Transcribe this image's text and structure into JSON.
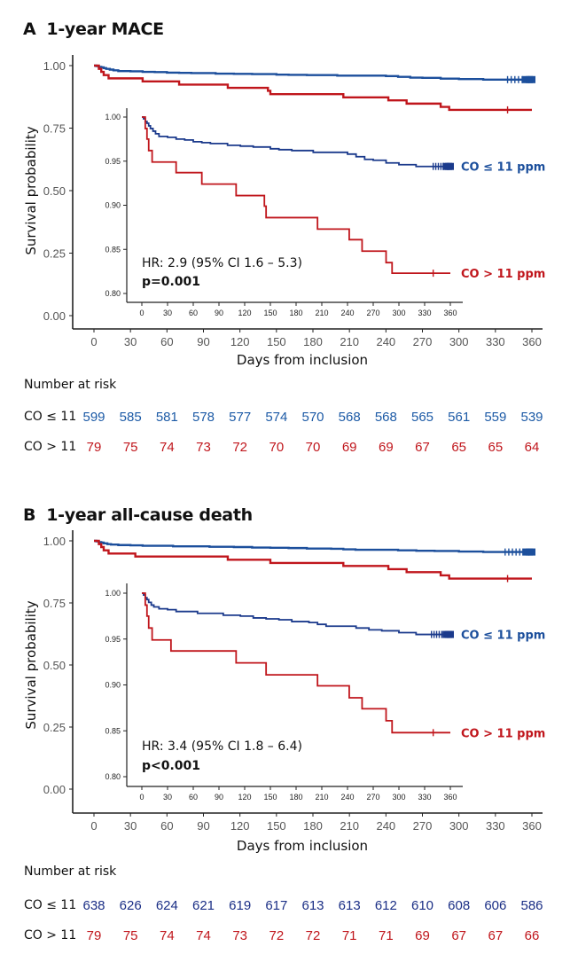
{
  "colors": {
    "low": "#1c4f9c",
    "low_inset": "#1b3a8c",
    "high": "#c0161c",
    "axis": "#222222",
    "tick_text": "#555555"
  },
  "chart_data": [
    {
      "id": "A",
      "type": "line",
      "panel_letter": "A",
      "title": "1-year MACE",
      "xlabel": "Days from inclusion",
      "ylabel": "Survival probability",
      "xlim": [
        0,
        360
      ],
      "ylim": [
        0,
        1
      ],
      "x_ticks": [
        0,
        30,
        60,
        90,
        120,
        150,
        180,
        210,
        240,
        270,
        300,
        330,
        360
      ],
      "y_ticks": [
        "0.00",
        "0.25",
        "0.50",
        "0.75",
        "1.00"
      ],
      "series": [
        {
          "name": "CO ≤ 11 ppm",
          "color": "#1c4f9c",
          "points": [
            [
              0,
              1.0
            ],
            [
              2,
              0.998
            ],
            [
              4,
              0.995
            ],
            [
              6,
              0.993
            ],
            [
              8,
              0.99
            ],
            [
              10,
              0.987
            ],
            [
              13,
              0.984
            ],
            [
              16,
              0.981
            ],
            [
              20,
              0.978
            ],
            [
              30,
              0.977
            ],
            [
              40,
              0.975
            ],
            [
              50,
              0.974
            ],
            [
              60,
              0.972
            ],
            [
              70,
              0.971
            ],
            [
              80,
              0.97
            ],
            [
              100,
              0.968
            ],
            [
              115,
              0.967
            ],
            [
              130,
              0.966
            ],
            [
              150,
              0.964
            ],
            [
              160,
              0.963
            ],
            [
              175,
              0.962
            ],
            [
              200,
              0.96
            ],
            [
              230,
              0.96
            ],
            [
              240,
              0.958
            ],
            [
              250,
              0.955
            ],
            [
              260,
              0.952
            ],
            [
              270,
              0.951
            ],
            [
              285,
              0.948
            ],
            [
              300,
              0.946
            ],
            [
              320,
              0.944
            ],
            [
              360,
              0.944
            ]
          ],
          "censor_x": [
            340,
            343,
            346,
            349,
            352,
            355,
            358,
            360
          ]
        },
        {
          "name": "CO > 11 ppm",
          "color": "#c0161c",
          "points": [
            [
              0,
              1.0
            ],
            [
              4,
              0.987
            ],
            [
              6,
              0.975
            ],
            [
              8,
              0.962
            ],
            [
              12,
              0.949
            ],
            [
              40,
              0.937
            ],
            [
              70,
              0.924
            ],
            [
              110,
              0.911
            ],
            [
              143,
              0.899
            ],
            [
              145,
              0.886
            ],
            [
              205,
              0.873
            ],
            [
              242,
              0.861
            ],
            [
              257,
              0.848
            ],
            [
              285,
              0.835
            ],
            [
              292,
              0.823
            ],
            [
              360,
              0.823
            ]
          ],
          "censor_x": [
            340
          ]
        }
      ],
      "annotations": {
        "hr": "HR: 2.9 (95% CI 1.6 – 5.3)",
        "p": "p=0.001"
      },
      "inset": {
        "xlim": [
          0,
          360
        ],
        "ylim": [
          0.8,
          1.0
        ],
        "x_ticks": [
          0,
          30,
          60,
          90,
          120,
          150,
          180,
          210,
          240,
          270,
          300,
          330,
          360
        ],
        "y_ticks": [
          "0.80",
          "0.85",
          "0.90",
          "0.95",
          "1.00"
        ],
        "legend": [
          "CO ≤ 11 ppm",
          "CO > 11 ppm"
        ]
      },
      "risk_table": {
        "title": "Number at risk",
        "rows": [
          {
            "label": "CO ≤ 11",
            "color": "#1c5aa6",
            "values": [
              599,
              585,
              581,
              578,
              577,
              574,
              570,
              568,
              568,
              565,
              561,
              559,
              539
            ]
          },
          {
            "label": "CO > 11",
            "color": "#c0161c",
            "values": [
              79,
              75,
              74,
              73,
              72,
              70,
              70,
              69,
              69,
              67,
              65,
              65,
              64
            ]
          }
        ]
      }
    },
    {
      "id": "B",
      "type": "line",
      "panel_letter": "B",
      "title": "1-year all-cause death",
      "xlabel": "Days from inclusion",
      "ylabel": "Survival probability",
      "xlim": [
        0,
        360
      ],
      "ylim": [
        0,
        1
      ],
      "x_ticks": [
        0,
        30,
        60,
        90,
        120,
        150,
        180,
        210,
        240,
        270,
        300,
        330,
        360
      ],
      "y_ticks": [
        "0.00",
        "0.25",
        "0.50",
        "0.75",
        "1.00"
      ],
      "series": [
        {
          "name": "CO ≤ 11 ppm",
          "color": "#1c4f9c",
          "points": [
            [
              0,
              1.0
            ],
            [
              2,
              0.998
            ],
            [
              4,
              0.995
            ],
            [
              6,
              0.993
            ],
            [
              8,
              0.99
            ],
            [
              11,
              0.987
            ],
            [
              14,
              0.985
            ],
            [
              20,
              0.983
            ],
            [
              30,
              0.982
            ],
            [
              40,
              0.98
            ],
            [
              55,
              0.98
            ],
            [
              65,
              0.978
            ],
            [
              85,
              0.978
            ],
            [
              95,
              0.976
            ],
            [
              115,
              0.975
            ],
            [
              130,
              0.973
            ],
            [
              145,
              0.972
            ],
            [
              160,
              0.971
            ],
            [
              175,
              0.969
            ],
            [
              195,
              0.968
            ],
            [
              205,
              0.966
            ],
            [
              215,
              0.964
            ],
            [
              240,
              0.964
            ],
            [
              250,
              0.962
            ],
            [
              265,
              0.96
            ],
            [
              280,
              0.959
            ],
            [
              300,
              0.957
            ],
            [
              320,
              0.955
            ],
            [
              360,
              0.955
            ]
          ],
          "censor_x": [
            338,
            341,
            344,
            347,
            350,
            355,
            358,
            360
          ]
        },
        {
          "name": "CO > 11 ppm",
          "color": "#c0161c",
          "points": [
            [
              0,
              1.0
            ],
            [
              4,
              0.987
            ],
            [
              6,
              0.975
            ],
            [
              8,
              0.962
            ],
            [
              12,
              0.949
            ],
            [
              34,
              0.937
            ],
            [
              110,
              0.924
            ],
            [
              145,
              0.911
            ],
            [
              205,
              0.899
            ],
            [
              242,
              0.886
            ],
            [
              257,
              0.874
            ],
            [
              285,
              0.861
            ],
            [
              292,
              0.848
            ],
            [
              360,
              0.848
            ]
          ],
          "censor_x": [
            340
          ]
        }
      ],
      "annotations": {
        "hr": "HR: 3.4 (95% CI 1.8 – 6.4)",
        "p": "p<0.001"
      },
      "inset": {
        "xlim": [
          0,
          360
        ],
        "ylim": [
          0.8,
          1.0
        ],
        "x_ticks": [
          0,
          30,
          60,
          90,
          120,
          150,
          180,
          210,
          240,
          270,
          300,
          330,
          360
        ],
        "y_ticks": [
          "0.80",
          "0.85",
          "0.90",
          "0.95",
          "1.00"
        ],
        "legend": [
          "CO ≤ 11 ppm",
          "CO > 11 ppm"
        ]
      },
      "risk_table": {
        "title": "Number at risk",
        "rows": [
          {
            "label": "CO ≤ 11",
            "color": "#1b2f86",
            "values": [
              638,
              626,
              624,
              621,
              619,
              617,
              613,
              613,
              612,
              610,
              608,
              606,
              586
            ]
          },
          {
            "label": "CO > 11",
            "color": "#c0161c",
            "values": [
              79,
              75,
              74,
              74,
              73,
              72,
              72,
              71,
              71,
              69,
              67,
              67,
              66
            ]
          }
        ]
      }
    }
  ]
}
